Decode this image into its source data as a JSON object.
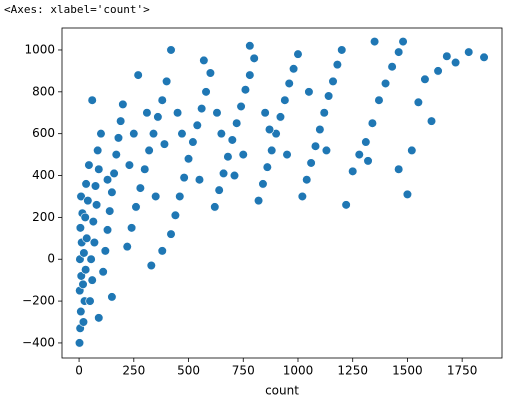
{
  "output_text": "<Axes: xlabel='count'>",
  "chart_data": {
    "type": "scatter",
    "xlabel": "count",
    "color": "#1f77b4",
    "grid": false,
    "xlim": [
      -78,
      1932
    ],
    "ylim": [
      -472,
      1105
    ],
    "xticks": [
      0,
      250,
      500,
      750,
      1000,
      1250,
      1500,
      1750
    ],
    "yticks": [
      {
        "value": -400,
        "label": "−400"
      },
      {
        "value": -200,
        "label": "−200"
      },
      0,
      200,
      400,
      600,
      800,
      1000
    ],
    "x": [
      2,
      5,
      8,
      3,
      10,
      4,
      12,
      6,
      15,
      9,
      20,
      25,
      18,
      30,
      22,
      35,
      28,
      40,
      32,
      45,
      50,
      60,
      55,
      70,
      65,
      80,
      75,
      90,
      85,
      100,
      110,
      120,
      130,
      140,
      150,
      160,
      170,
      180,
      190,
      200,
      220,
      240,
      260,
      280,
      300,
      320,
      340,
      360,
      380,
      400,
      420,
      440,
      460,
      480,
      500,
      520,
      540,
      560,
      580,
      600,
      620,
      640,
      660,
      680,
      700,
      720,
      740,
      760,
      780,
      800,
      820,
      840,
      860,
      880,
      900,
      920,
      940,
      960,
      980,
      1000,
      1020,
      1040,
      1060,
      1080,
      1100,
      1120,
      1140,
      1160,
      1180,
      1200,
      1220,
      1250,
      1280,
      1310,
      1340,
      1370,
      1400,
      1430,
      1460,
      1480,
      1500,
      1520,
      1550,
      1580,
      1610,
      1640,
      1680,
      1720,
      1780,
      1850,
      330,
      380,
      150,
      270,
      420,
      570,
      780,
      1350,
      1320,
      1460,
      90,
      60,
      250,
      350,
      450,
      650,
      750,
      850,
      950,
      1050,
      130,
      230,
      310,
      390,
      470,
      550,
      630,
      710,
      870,
      1130
    ],
    "values": [
      -400,
      -330,
      -250,
      -150,
      -80,
      0,
      80,
      150,
      220,
      300,
      -300,
      -200,
      -120,
      -50,
      30,
      100,
      200,
      280,
      360,
      450,
      -200,
      -100,
      0,
      80,
      180,
      260,
      350,
      430,
      520,
      600,
      -60,
      40,
      140,
      230,
      320,
      410,
      500,
      580,
      660,
      740,
      60,
      150,
      250,
      340,
      430,
      520,
      600,
      680,
      760,
      850,
      120,
      210,
      300,
      390,
      480,
      560,
      640,
      720,
      800,
      890,
      250,
      330,
      410,
      490,
      570,
      650,
      730,
      810,
      880,
      960,
      280,
      360,
      440,
      520,
      600,
      680,
      760,
      840,
      910,
      980,
      300,
      380,
      460,
      540,
      620,
      700,
      780,
      850,
      930,
      1000,
      260,
      420,
      500,
      560,
      650,
      760,
      840,
      920,
      990,
      1040,
      310,
      520,
      750,
      860,
      660,
      900,
      970,
      940,
      990,
      965,
      -30,
      40,
      -180,
      880,
      1000,
      950,
      1020,
      1040,
      470,
      430,
      -280,
      760,
      600,
      300,
      700,
      600,
      500,
      700,
      500,
      800,
      380,
      450,
      700,
      550,
      600,
      380,
      700,
      400,
      620,
      520
    ]
  }
}
